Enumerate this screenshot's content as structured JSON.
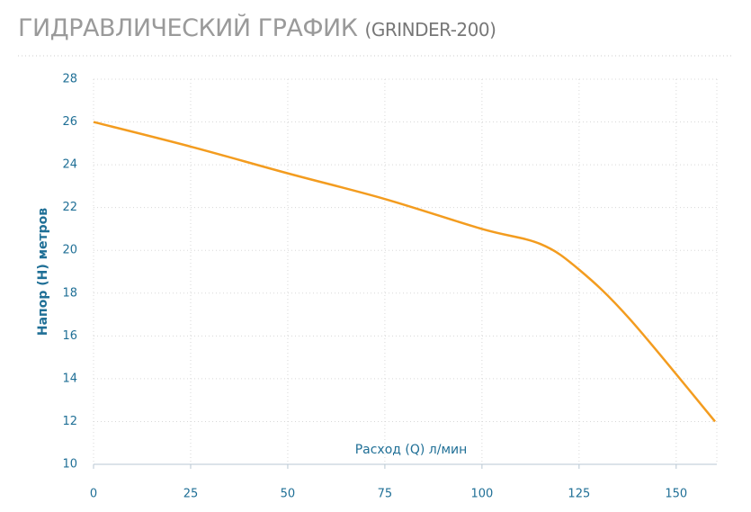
{
  "chart_data": {
    "type": "line",
    "title": "ГИДРАВЛИЧЕСКИЙ ГРАФИК",
    "subtitle": "(GRINDER-200)",
    "x_label": "Расход (Q) л/мин",
    "y_label": "Напор (H) метров",
    "x": [
      0,
      25,
      50,
      75,
      100,
      115,
      125,
      138,
      160
    ],
    "series": [
      {
        "name": "GRINDER-200",
        "color": "#f39c1f",
        "values": [
          26,
          24.85,
          23.6,
          22.4,
          21.0,
          20.3,
          19.1,
          16.8,
          12
        ]
      }
    ],
    "xlim": [
      0,
      160
    ],
    "xticks": [
      0,
      25,
      50,
      75,
      100,
      125,
      150
    ],
    "ylim": [
      10,
      28
    ],
    "yticks": [
      10,
      12,
      14,
      16,
      18,
      20,
      22,
      24,
      26,
      28
    ],
    "grid": true
  }
}
